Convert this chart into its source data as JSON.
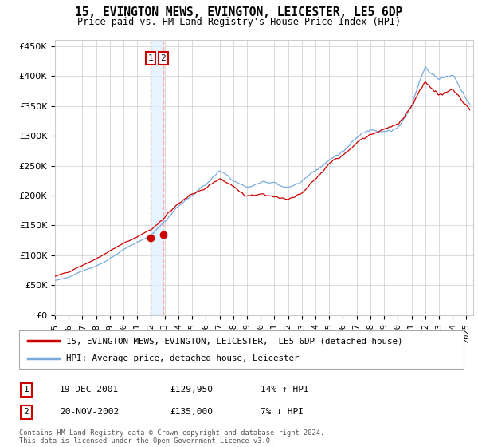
{
  "title": "15, EVINGTON MEWS, EVINGTON, LEICESTER, LE5 6DP",
  "subtitle": "Price paid vs. HM Land Registry's House Price Index (HPI)",
  "ylabel_ticks": [
    "£0",
    "£50K",
    "£100K",
    "£150K",
    "£200K",
    "£250K",
    "£300K",
    "£350K",
    "£400K",
    "£450K"
  ],
  "ytick_vals": [
    0,
    50000,
    100000,
    150000,
    200000,
    250000,
    300000,
    350000,
    400000,
    450000
  ],
  "ylim": [
    0,
    460000
  ],
  "xlim_start": 1995.0,
  "xlim_end": 2025.5,
  "sale1_date": 2001.96,
  "sale1_price": 129950,
  "sale1_label": "1",
  "sale2_date": 2002.9,
  "sale2_price": 135000,
  "sale2_label": "2",
  "red_line_color": "#cc0000",
  "blue_line_color": "#7aabdc",
  "annotation_box_color": "#cc0000",
  "dashed_line_color": "#ffaaaa",
  "shade_color": "#ddeeff",
  "legend_red_label": "15, EVINGTON MEWS, EVINGTON, LEICESTER,  LE5 6DP (detached house)",
  "legend_blue_label": "HPI: Average price, detached house, Leicester",
  "table_row1": [
    "1",
    "19-DEC-2001",
    "£129,950",
    "14% ↑ HPI"
  ],
  "table_row2": [
    "2",
    "20-NOV-2002",
    "£135,000",
    "7% ↓ HPI"
  ],
  "footnote": "Contains HM Land Registry data © Crown copyright and database right 2024.\nThis data is licensed under the Open Government Licence v3.0.",
  "background_color": "#ffffff",
  "grid_color": "#cccccc"
}
